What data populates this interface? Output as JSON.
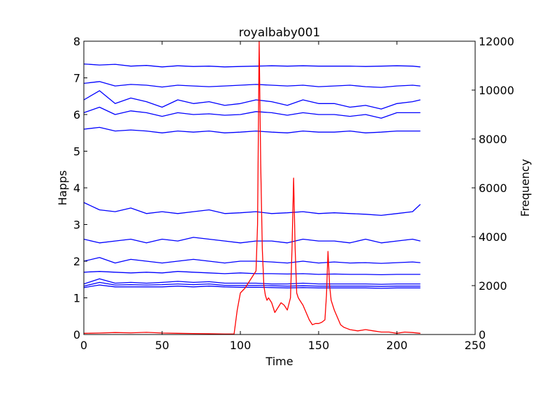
{
  "chart_data": {
    "type": "line",
    "title": "royalbaby001",
    "xlabel": "Time",
    "ylabel": "Happs",
    "y2label": "Frequency",
    "xlim": [
      0,
      250
    ],
    "ylim": [
      0,
      8
    ],
    "y2lim": [
      0,
      12000
    ],
    "xticks": [
      0,
      50,
      100,
      150,
      200,
      250
    ],
    "yticks": [
      0,
      1,
      2,
      3,
      4,
      5,
      6,
      7,
      8
    ],
    "y2ticks": [
      0,
      2000,
      4000,
      6000,
      8000,
      10000,
      12000
    ],
    "grid": false,
    "legend": "none",
    "happs_color": "#0000ff",
    "frequency_color": "#ff0000",
    "happs_series": [
      {
        "axis": "left",
        "x": [
          0,
          10,
          20,
          30,
          40,
          50,
          60,
          70,
          80,
          90,
          100,
          110,
          120,
          130,
          140,
          150,
          160,
          170,
          180,
          190,
          200,
          210,
          215
        ],
        "values": [
          7.38,
          7.35,
          7.37,
          7.32,
          7.34,
          7.3,
          7.33,
          7.31,
          7.32,
          7.3,
          7.31,
          7.32,
          7.33,
          7.32,
          7.33,
          7.32,
          7.32,
          7.32,
          7.31,
          7.32,
          7.33,
          7.32,
          7.3
        ]
      },
      {
        "axis": "left",
        "x": [
          0,
          10,
          20,
          30,
          40,
          50,
          60,
          70,
          80,
          90,
          100,
          110,
          120,
          130,
          140,
          150,
          160,
          170,
          180,
          190,
          200,
          210,
          215
        ],
        "values": [
          6.85,
          6.9,
          6.78,
          6.82,
          6.8,
          6.75,
          6.8,
          6.78,
          6.76,
          6.78,
          6.8,
          6.82,
          6.8,
          6.78,
          6.8,
          6.76,
          6.78,
          6.8,
          6.76,
          6.74,
          6.78,
          6.8,
          6.78
        ]
      },
      {
        "axis": "left",
        "x": [
          0,
          10,
          20,
          30,
          40,
          50,
          60,
          70,
          80,
          90,
          100,
          110,
          120,
          130,
          140,
          150,
          160,
          170,
          180,
          190,
          200,
          210,
          215
        ],
        "values": [
          6.4,
          6.65,
          6.3,
          6.45,
          6.35,
          6.2,
          6.4,
          6.3,
          6.35,
          6.25,
          6.3,
          6.4,
          6.35,
          6.25,
          6.4,
          6.3,
          6.3,
          6.2,
          6.25,
          6.15,
          6.3,
          6.35,
          6.4
        ]
      },
      {
        "axis": "left",
        "x": [
          0,
          10,
          20,
          30,
          40,
          50,
          60,
          70,
          80,
          90,
          100,
          110,
          120,
          130,
          140,
          150,
          160,
          170,
          180,
          190,
          200,
          210,
          215
        ],
        "values": [
          6.05,
          6.2,
          6.0,
          6.1,
          6.05,
          5.95,
          6.05,
          6.0,
          6.02,
          5.98,
          6.0,
          6.08,
          6.05,
          5.98,
          6.05,
          6.0,
          6.0,
          5.95,
          6.0,
          5.9,
          6.05,
          6.05,
          6.05
        ]
      },
      {
        "axis": "left",
        "x": [
          0,
          10,
          20,
          30,
          40,
          50,
          60,
          70,
          80,
          90,
          100,
          110,
          120,
          130,
          140,
          150,
          160,
          170,
          180,
          190,
          200,
          210,
          215
        ],
        "values": [
          5.6,
          5.65,
          5.55,
          5.58,
          5.55,
          5.5,
          5.55,
          5.52,
          5.55,
          5.5,
          5.52,
          5.55,
          5.52,
          5.5,
          5.55,
          5.52,
          5.52,
          5.55,
          5.5,
          5.52,
          5.55,
          5.55,
          5.55
        ]
      },
      {
        "axis": "left",
        "x": [
          0,
          10,
          20,
          30,
          40,
          50,
          60,
          70,
          80,
          90,
          100,
          110,
          120,
          130,
          140,
          150,
          160,
          170,
          180,
          190,
          200,
          210,
          215
        ],
        "values": [
          3.6,
          3.4,
          3.35,
          3.45,
          3.3,
          3.35,
          3.3,
          3.35,
          3.4,
          3.3,
          3.32,
          3.35,
          3.3,
          3.32,
          3.35,
          3.3,
          3.32,
          3.3,
          3.28,
          3.25,
          3.3,
          3.35,
          3.55
        ]
      },
      {
        "axis": "left",
        "x": [
          0,
          10,
          20,
          30,
          40,
          50,
          60,
          70,
          80,
          90,
          100,
          110,
          120,
          130,
          140,
          150,
          160,
          170,
          180,
          190,
          200,
          210,
          215
        ],
        "values": [
          2.6,
          2.5,
          2.55,
          2.6,
          2.5,
          2.6,
          2.55,
          2.65,
          2.6,
          2.55,
          2.5,
          2.55,
          2.55,
          2.5,
          2.6,
          2.55,
          2.55,
          2.5,
          2.6,
          2.5,
          2.55,
          2.6,
          2.55
        ]
      },
      {
        "axis": "left",
        "x": [
          0,
          10,
          20,
          30,
          40,
          50,
          60,
          70,
          80,
          90,
          100,
          110,
          120,
          130,
          140,
          150,
          160,
          170,
          180,
          190,
          200,
          210,
          215
        ],
        "values": [
          2.0,
          2.1,
          1.95,
          2.05,
          2.0,
          1.95,
          2.0,
          2.05,
          2.0,
          1.95,
          2.0,
          2.0,
          1.98,
          1.95,
          2.0,
          1.95,
          1.98,
          1.95,
          1.96,
          1.94,
          1.96,
          1.98,
          1.96
        ]
      },
      {
        "axis": "left",
        "x": [
          0,
          10,
          20,
          30,
          40,
          50,
          60,
          70,
          80,
          90,
          100,
          110,
          120,
          130,
          140,
          150,
          160,
          170,
          180,
          190,
          200,
          210,
          215
        ],
        "values": [
          1.7,
          1.72,
          1.7,
          1.68,
          1.7,
          1.68,
          1.72,
          1.7,
          1.68,
          1.66,
          1.68,
          1.66,
          1.66,
          1.65,
          1.66,
          1.64,
          1.65,
          1.64,
          1.64,
          1.63,
          1.64,
          1.64,
          1.64
        ]
      },
      {
        "axis": "left",
        "x": [
          0,
          10,
          20,
          30,
          40,
          50,
          60,
          70,
          80,
          90,
          100,
          110,
          120,
          130,
          140,
          150,
          160,
          170,
          180,
          190,
          200,
          210,
          215
        ],
        "values": [
          1.38,
          1.52,
          1.4,
          1.42,
          1.4,
          1.42,
          1.45,
          1.42,
          1.44,
          1.4,
          1.4,
          1.4,
          1.38,
          1.38,
          1.4,
          1.38,
          1.38,
          1.38,
          1.38,
          1.37,
          1.38,
          1.38,
          1.38
        ]
      },
      {
        "axis": "left",
        "x": [
          0,
          10,
          20,
          30,
          40,
          50,
          60,
          70,
          80,
          90,
          100,
          110,
          120,
          130,
          140,
          150,
          160,
          170,
          180,
          190,
          200,
          210,
          215
        ],
        "values": [
          1.32,
          1.42,
          1.35,
          1.36,
          1.35,
          1.36,
          1.38,
          1.36,
          1.38,
          1.34,
          1.34,
          1.34,
          1.33,
          1.32,
          1.33,
          1.32,
          1.32,
          1.32,
          1.32,
          1.31,
          1.32,
          1.32,
          1.32
        ]
      },
      {
        "axis": "left",
        "x": [
          0,
          10,
          20,
          30,
          40,
          50,
          60,
          70,
          80,
          90,
          100,
          110,
          120,
          130,
          140,
          150,
          160,
          170,
          180,
          190,
          200,
          210,
          215
        ],
        "values": [
          1.28,
          1.35,
          1.3,
          1.3,
          1.3,
          1.3,
          1.32,
          1.3,
          1.32,
          1.3,
          1.29,
          1.29,
          1.28,
          1.27,
          1.28,
          1.27,
          1.27,
          1.27,
          1.27,
          1.26,
          1.27,
          1.27,
          1.27
        ]
      }
    ],
    "frequency_series": {
      "axis": "right",
      "x": [
        0,
        10,
        20,
        30,
        40,
        50,
        60,
        70,
        80,
        90,
        96,
        98,
        100,
        103,
        106,
        108,
        110,
        111,
        112,
        113,
        114,
        115,
        116,
        117,
        118,
        120,
        122,
        124,
        126,
        128,
        130,
        132,
        133,
        134,
        135,
        136,
        137,
        138,
        140,
        142,
        144,
        146,
        148,
        150,
        152,
        154,
        155,
        156,
        157,
        158,
        160,
        162,
        164,
        166,
        168,
        170,
        175,
        180,
        185,
        190,
        195,
        200,
        205,
        210,
        215
      ],
      "values": [
        50,
        60,
        80,
        70,
        90,
        60,
        50,
        40,
        30,
        20,
        20,
        1000,
        1700,
        1900,
        2200,
        2400,
        2600,
        4500,
        12000,
        7000,
        3500,
        2000,
        1600,
        1400,
        1500,
        1300,
        900,
        1100,
        1300,
        1200,
        1000,
        1500,
        3500,
        6400,
        3500,
        1700,
        1500,
        1400,
        1200,
        900,
        600,
        400,
        450,
        450,
        500,
        600,
        1600,
        3400,
        2000,
        1400,
        1000,
        700,
        400,
        300,
        250,
        200,
        150,
        200,
        150,
        100,
        100,
        50,
        100,
        80,
        50
      ]
    }
  }
}
